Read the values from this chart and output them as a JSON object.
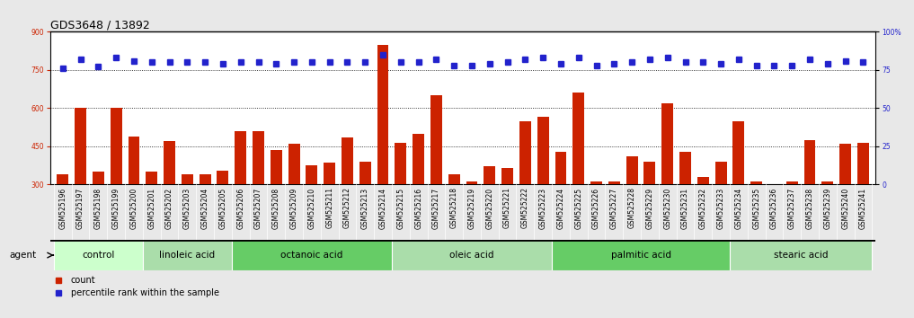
{
  "title": "GDS3648 / 13892",
  "samples": [
    "GSM525196",
    "GSM525197",
    "GSM525198",
    "GSM525199",
    "GSM525200",
    "GSM525201",
    "GSM525202",
    "GSM525203",
    "GSM525204",
    "GSM525205",
    "GSM525206",
    "GSM525207",
    "GSM525208",
    "GSM525209",
    "GSM525210",
    "GSM525211",
    "GSM525212",
    "GSM525213",
    "GSM525214",
    "GSM525215",
    "GSM525216",
    "GSM525217",
    "GSM525218",
    "GSM525219",
    "GSM525220",
    "GSM525221",
    "GSM525222",
    "GSM525223",
    "GSM525224",
    "GSM525225",
    "GSM525226",
    "GSM525227",
    "GSM525228",
    "GSM525229",
    "GSM525230",
    "GSM525231",
    "GSM525232",
    "GSM525233",
    "GSM525234",
    "GSM525235",
    "GSM525236",
    "GSM525237",
    "GSM525238",
    "GSM525239",
    "GSM525240",
    "GSM525241"
  ],
  "counts": [
    340,
    600,
    350,
    600,
    490,
    350,
    470,
    340,
    340,
    355,
    510,
    510,
    435,
    460,
    375,
    385,
    485,
    390,
    850,
    465,
    500,
    650,
    340,
    310,
    370,
    365,
    550,
    565,
    430,
    660,
    310,
    310,
    410,
    390,
    620,
    430,
    330,
    390,
    550,
    310,
    295,
    310,
    475,
    310,
    460,
    465
  ],
  "percentile_ranks": [
    76,
    82,
    77,
    83,
    81,
    80,
    80,
    80,
    80,
    79,
    80,
    80,
    79,
    80,
    80,
    80,
    80,
    80,
    85,
    80,
    80,
    82,
    78,
    78,
    79,
    80,
    82,
    83,
    79,
    83,
    78,
    79,
    80,
    82,
    83,
    80,
    80,
    79,
    82,
    78,
    78,
    78,
    82,
    79,
    81,
    80
  ],
  "groups": [
    {
      "label": "control",
      "start": 0,
      "end": 4,
      "color": "#ccffcc"
    },
    {
      "label": "linoleic acid",
      "start": 5,
      "end": 9,
      "color": "#aaddaa"
    },
    {
      "label": "octanoic acid",
      "start": 10,
      "end": 18,
      "color": "#66cc66"
    },
    {
      "label": "oleic acid",
      "start": 19,
      "end": 27,
      "color": "#aaddaa"
    },
    {
      "label": "palmitic acid",
      "start": 28,
      "end": 37,
      "color": "#66cc66"
    },
    {
      "label": "stearic acid",
      "start": 38,
      "end": 45,
      "color": "#aaddaa"
    }
  ],
  "ylim_left": [
    300,
    900
  ],
  "ylim_right": [
    0,
    100
  ],
  "yticks_left": [
    300,
    450,
    600,
    750,
    900
  ],
  "yticks_right": [
    0,
    25,
    50,
    75,
    100
  ],
  "bar_color": "#cc2200",
  "dot_color": "#2222cc",
  "background_color": "#e8e8e8",
  "plot_bg_color": "#ffffff",
  "xticklabel_bg": "#d0d0d0",
  "title_fontsize": 9,
  "tick_fontsize": 5.5,
  "legend_fontsize": 7,
  "group_label_fontsize": 7.5
}
